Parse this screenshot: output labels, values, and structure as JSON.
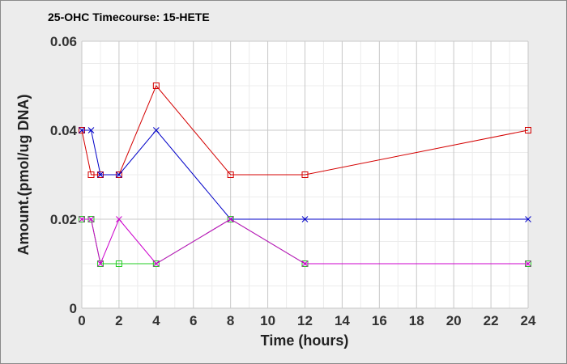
{
  "chart_data": {
    "type": "line",
    "title": "25-OHC Timecourse: 15-HETE",
    "xlabel": "Time (hours)",
    "ylabel": "Amount.(pmol/ug DNA)",
    "xlim": [
      0,
      24
    ],
    "ylim": [
      0,
      0.06
    ],
    "x_ticks": [
      0,
      2,
      4,
      6,
      8,
      10,
      12,
      14,
      16,
      18,
      20,
      22,
      24
    ],
    "y_ticks": [
      0,
      0.02,
      0.04,
      0.06
    ],
    "y_tick_labels": [
      "0",
      "0.02",
      "0.04",
      "0.06"
    ],
    "grid": true,
    "legend": "none",
    "series": [
      {
        "color": "#d40000",
        "marker": "square",
        "x": [
          0,
          0.5,
          1,
          2,
          4,
          8,
          12,
          24
        ],
        "y": [
          0.04,
          0.03,
          0.03,
          0.03,
          0.05,
          0.03,
          0.03,
          0.04
        ]
      },
      {
        "color": "#0000c8",
        "marker": "x",
        "x": [
          0,
          0.5,
          1,
          2,
          4,
          8,
          12,
          24
        ],
        "y": [
          0.04,
          0.04,
          0.03,
          0.03,
          0.04,
          0.02,
          0.02,
          0.02
        ]
      },
      {
        "color": "#22cc22",
        "marker": "square",
        "x": [
          0,
          0.5,
          1,
          2,
          4,
          8,
          12,
          24
        ],
        "y": [
          0.02,
          0.02,
          0.01,
          0.01,
          0.01,
          0.02,
          0.01,
          0.01
        ]
      },
      {
        "color": "#cc00cc",
        "marker": "x",
        "x": [
          0,
          0.5,
          1,
          2,
          4,
          8,
          12,
          24
        ],
        "y": [
          0.02,
          0.02,
          0.01,
          0.02,
          0.01,
          0.02,
          0.01,
          0.01
        ]
      }
    ]
  }
}
